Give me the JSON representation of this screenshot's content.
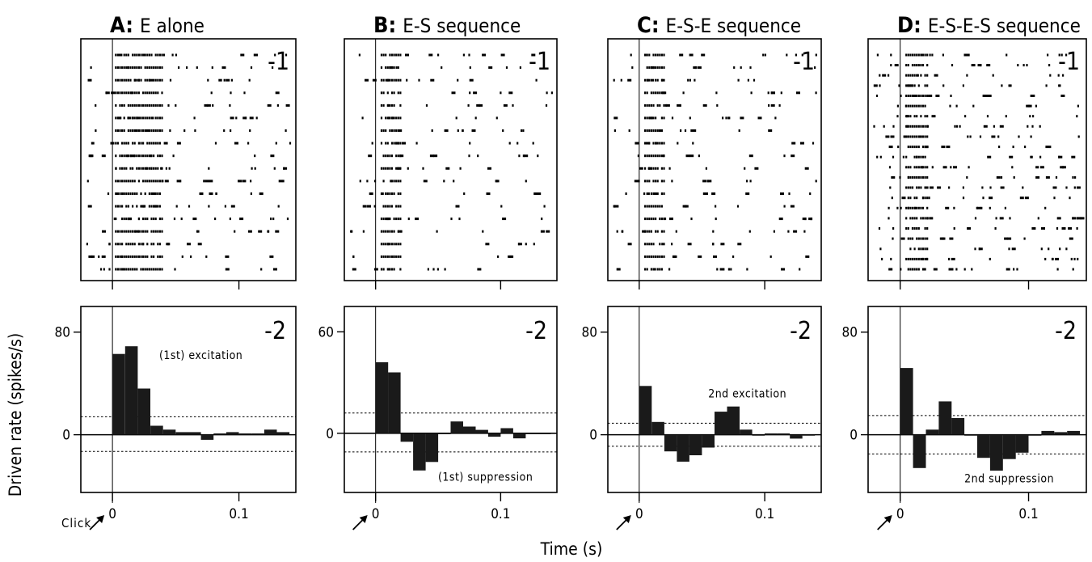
{
  "figure": {
    "y_axis_title": "Driven rate (spikes/s)",
    "x_axis_title": "Time (s)",
    "click_label": "Click"
  },
  "chart_data": [
    {
      "type": "raster",
      "panel": "A",
      "title_letter": "A:",
      "title_text": "E  alone",
      "corner_label": "-1",
      "trials": 18,
      "xlim": [
        -0.025,
        0.145
      ],
      "x_ticks": [
        0,
        0.1
      ],
      "stimulus_time": 0,
      "burst": [
        0.002,
        0.04
      ],
      "sparse_density": 0.9
    },
    {
      "type": "bar",
      "panel": "A",
      "corner_label": "-2",
      "bin_width": 0.01,
      "bin_starts": [
        0.0,
        0.01,
        0.02,
        0.03,
        0.04,
        0.05,
        0.06,
        0.07,
        0.08,
        0.09,
        0.1,
        0.11,
        0.12,
        0.13
      ],
      "values": [
        63,
        69,
        36,
        7,
        4,
        2,
        2,
        -4,
        1,
        2,
        1,
        1,
        4,
        2
      ],
      "ylim": [
        -45,
        100
      ],
      "y_ticks": [
        0,
        80
      ],
      "x_ticks": [
        0,
        0.1
      ],
      "x_tick_labels": [
        "0",
        "0.1"
      ],
      "xlim": [
        -0.025,
        0.145
      ],
      "threshold_upper": 14,
      "threshold_lower": -13,
      "annotation": "(1st) excitation",
      "annotation_at": [
        0.037,
        59
      ]
    },
    {
      "type": "raster",
      "panel": "B",
      "title_letter": "B:",
      "title_text": "E-S sequence",
      "corner_label": "-1",
      "trials": 18,
      "xlim": [
        -0.025,
        0.145
      ],
      "x_ticks": [
        0,
        0.1
      ],
      "stimulus_time": 0,
      "burst": [
        0.004,
        0.02
      ],
      "sparse_density": 0.6
    },
    {
      "type": "bar",
      "panel": "B",
      "corner_label": "-2",
      "bin_width": 0.01,
      "bin_starts": [
        0.0,
        0.01,
        0.02,
        0.03,
        0.04,
        0.05,
        0.06,
        0.07,
        0.08,
        0.09,
        0.1,
        0.11,
        0.12,
        0.13
      ],
      "values": [
        42,
        36,
        -5,
        -22,
        -17,
        0,
        7,
        4,
        2,
        -2,
        3,
        -3,
        0,
        0
      ],
      "ylim": [
        -35,
        75
      ],
      "y_ticks": [
        0,
        60
      ],
      "x_ticks": [
        0,
        0.1
      ],
      "x_tick_labels": [
        "0",
        "0.1"
      ],
      "xlim": [
        -0.025,
        0.145
      ],
      "threshold_upper": 12,
      "threshold_lower": -11,
      "annotation": "(1st) suppression",
      "annotation_at": [
        0.05,
        -28
      ]
    },
    {
      "type": "raster",
      "panel": "C",
      "title_letter": "C:",
      "title_text": "E-S-E sequence",
      "corner_label": "-1",
      "trials": 18,
      "xlim": [
        -0.025,
        0.145
      ],
      "x_ticks": [
        0,
        0.1
      ],
      "stimulus_time": 0,
      "burst": [
        0.004,
        0.02
      ],
      "sparse_density": 0.85
    },
    {
      "type": "bar",
      "panel": "C",
      "corner_label": "-2",
      "bin_width": 0.01,
      "bin_starts": [
        0.0,
        0.01,
        0.02,
        0.03,
        0.04,
        0.05,
        0.06,
        0.07,
        0.08,
        0.09,
        0.1,
        0.11,
        0.12,
        0.13
      ],
      "values": [
        38,
        10,
        -13,
        -21,
        -16,
        -10,
        18,
        22,
        4,
        0,
        1,
        1,
        -3,
        0
      ],
      "ylim": [
        -45,
        100
      ],
      "y_ticks": [
        0,
        80
      ],
      "x_ticks": [
        0,
        0.1
      ],
      "x_tick_labels": [
        "0",
        "0.1"
      ],
      "xlim": [
        -0.025,
        0.145
      ],
      "threshold_upper": 9,
      "threshold_lower": -9,
      "annotation": "2nd excitation",
      "annotation_at": [
        0.055,
        29
      ]
    },
    {
      "type": "raster",
      "panel": "D",
      "title_letter": "D:",
      "title_text": "E-S-E-S sequence",
      "corner_label": "-1",
      "trials": 22,
      "xlim": [
        -0.025,
        0.145
      ],
      "x_ticks": [
        0,
        0.1
      ],
      "stimulus_time": 0,
      "burst": [
        0.004,
        0.022
      ],
      "sparse_density": 1.0
    },
    {
      "type": "bar",
      "panel": "D",
      "corner_label": "-2",
      "bin_width": 0.01,
      "bin_starts": [
        0.0,
        0.01,
        0.02,
        0.03,
        0.04,
        0.05,
        0.06,
        0.07,
        0.08,
        0.09,
        0.1,
        0.11,
        0.12,
        0.13
      ],
      "values": [
        52,
        -26,
        4,
        26,
        13,
        0,
        -18,
        -28,
        -19,
        -14,
        0,
        3,
        2,
        3
      ],
      "ylim": [
        -45,
        100
      ],
      "y_ticks": [
        0,
        80
      ],
      "x_ticks": [
        0,
        0.1
      ],
      "x_tick_labels": [
        "0",
        "0.1"
      ],
      "xlim": [
        -0.025,
        0.145
      ],
      "threshold_upper": 15,
      "threshold_lower": -15,
      "annotation": "2nd suppression",
      "annotation_at": [
        0.05,
        -37
      ]
    }
  ]
}
